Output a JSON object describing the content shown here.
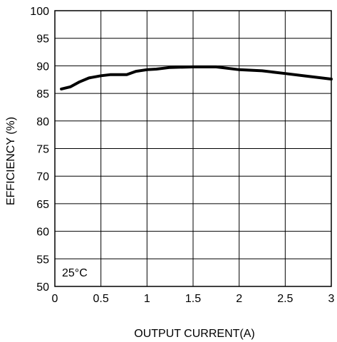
{
  "chart_data": {
    "type": "line",
    "title": "",
    "xlabel": "OUTPUT CURRENT(A)",
    "ylabel": "EFFICIENCY (%)",
    "xlim": [
      0,
      3
    ],
    "ylim": [
      50,
      100
    ],
    "x_ticks": [
      0,
      0.5,
      1,
      1.5,
      2,
      2.5,
      3
    ],
    "y_ticks": [
      50,
      55,
      60,
      65,
      70,
      75,
      80,
      85,
      90,
      95,
      100
    ],
    "x_tick_labels": [
      "0",
      "0.5",
      "1",
      "1.5",
      "2",
      "2.5",
      "3"
    ],
    "y_tick_labels": [
      "50",
      "55",
      "60",
      "65",
      "70",
      "75",
      "80",
      "85",
      "90",
      "95",
      "100"
    ],
    "grid": true,
    "annotation": "25°C",
    "series": [
      {
        "color": "#000000",
        "x": [
          0.07,
          0.17,
          0.27,
          0.37,
          0.5,
          0.6,
          0.78,
          0.88,
          1.0,
          1.1,
          1.25,
          1.5,
          1.75,
          2.0,
          2.25,
          2.5,
          2.75,
          3.0
        ],
        "y": [
          85.8,
          86.2,
          87.1,
          87.8,
          88.2,
          88.4,
          88.4,
          89.0,
          89.3,
          89.4,
          89.7,
          89.8,
          89.8,
          89.3,
          89.1,
          88.6,
          88.1,
          87.6
        ]
      }
    ]
  }
}
